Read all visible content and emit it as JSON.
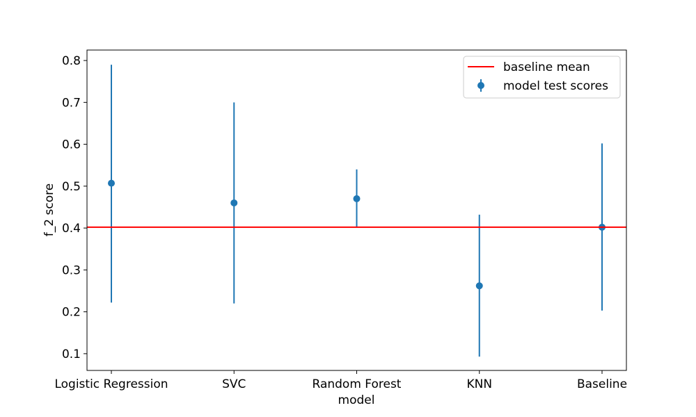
{
  "chart_data": {
    "type": "scatter",
    "title": "",
    "xlabel": "model",
    "ylabel": "f_2 score",
    "categories": [
      "Logistic Regression",
      "SVC",
      "Random Forest",
      "KNN",
      "Baseline"
    ],
    "series": [
      {
        "name": "model test scores",
        "values": [
          0.507,
          0.46,
          0.47,
          0.262,
          0.402
        ],
        "error_low": [
          0.222,
          0.22,
          0.403,
          0.093,
          0.203
        ],
        "error_high": [
          0.79,
          0.7,
          0.54,
          0.432,
          0.602
        ]
      }
    ],
    "reference_line": {
      "name": "baseline mean",
      "value": 0.402
    },
    "yticks": [
      0.1,
      0.2,
      0.3,
      0.4,
      0.5,
      0.6,
      0.7,
      0.8
    ],
    "ylim": [
      0.06,
      0.825
    ],
    "grid": false,
    "legend_position": "top-right",
    "colors": {
      "series": "#1f77b4",
      "reference": "#ff0000"
    }
  }
}
